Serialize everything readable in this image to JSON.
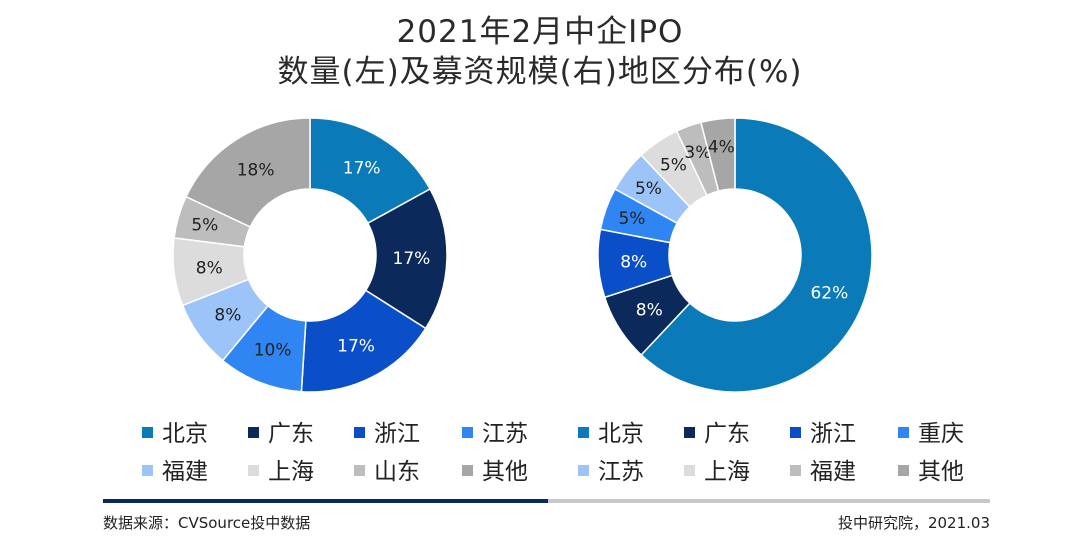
{
  "title": {
    "line1": "2021年2月中企IPO",
    "line2": "数量(左)及募资规模(右)地区分布(%)"
  },
  "chart_data": [
    {
      "type": "pie",
      "variant": "donut",
      "name": "数量",
      "position": "left",
      "categories": [
        "北京",
        "广东",
        "浙江",
        "江苏",
        "福建",
        "上海",
        "山东",
        "其他"
      ],
      "values": [
        17,
        17,
        17,
        10,
        8,
        8,
        5,
        18
      ],
      "labels": [
        "17%",
        "17%",
        "17%",
        "10%",
        "8%",
        "8%",
        "5%",
        "18%"
      ],
      "colors": [
        "#0a7ab8",
        "#0b2a5b",
        "#0a4ec8",
        "#2f86f2",
        "#9cc4f8",
        "#dcdcdc",
        "#bdbdbd",
        "#a6a6a6"
      ],
      "label_colors": [
        "#ffffff",
        "#ffffff",
        "#ffffff",
        "#222222",
        "#222222",
        "#222222",
        "#222222",
        "#222222"
      ]
    },
    {
      "type": "pie",
      "variant": "donut",
      "name": "募资规模",
      "position": "right",
      "categories": [
        "北京",
        "广东",
        "浙江",
        "重庆",
        "江苏",
        "上海",
        "福建",
        "其他"
      ],
      "values": [
        62,
        8,
        8,
        5,
        5,
        5,
        3,
        4
      ],
      "labels": [
        "62%",
        "8%",
        "8%",
        "5%",
        "5%",
        "5%",
        "3%",
        "4%"
      ],
      "colors": [
        "#0a7ab8",
        "#0b2a5b",
        "#0a4ec8",
        "#2f86f2",
        "#9cc4f8",
        "#dcdcdc",
        "#bdbdbd",
        "#a6a6a6"
      ],
      "label_colors": [
        "#ffffff",
        "#ffffff",
        "#ffffff",
        "#222222",
        "#222222",
        "#222222",
        "#222222",
        "#222222"
      ]
    }
  ],
  "legend_left": [
    {
      "label": "北京",
      "color": "#0a7ab8"
    },
    {
      "label": "广东",
      "color": "#0b2a5b"
    },
    {
      "label": "浙江",
      "color": "#0a4ec8"
    },
    {
      "label": "江苏",
      "color": "#2f86f2"
    },
    {
      "label": "福建",
      "color": "#9cc4f8"
    },
    {
      "label": "上海",
      "color": "#dcdcdc"
    },
    {
      "label": "山东",
      "color": "#bdbdbd"
    },
    {
      "label": "其他",
      "color": "#a6a6a6"
    }
  ],
  "legend_right": [
    {
      "label": "北京",
      "color": "#0a7ab8"
    },
    {
      "label": "广东",
      "color": "#0b2a5b"
    },
    {
      "label": "浙江",
      "color": "#0a4ec8"
    },
    {
      "label": "重庆",
      "color": "#2f86f2"
    },
    {
      "label": "江苏",
      "color": "#9cc4f8"
    },
    {
      "label": "上海",
      "color": "#dcdcdc"
    },
    {
      "label": "福建",
      "color": "#bdbdbd"
    },
    {
      "label": "其他",
      "color": "#a6a6a6"
    }
  ],
  "footer": {
    "source": "数据来源：CVSource投中数据",
    "credit": "投中研究院，2021.03",
    "bar_dark": "#0b2a5b",
    "bar_light": "#c8c8c8"
  }
}
